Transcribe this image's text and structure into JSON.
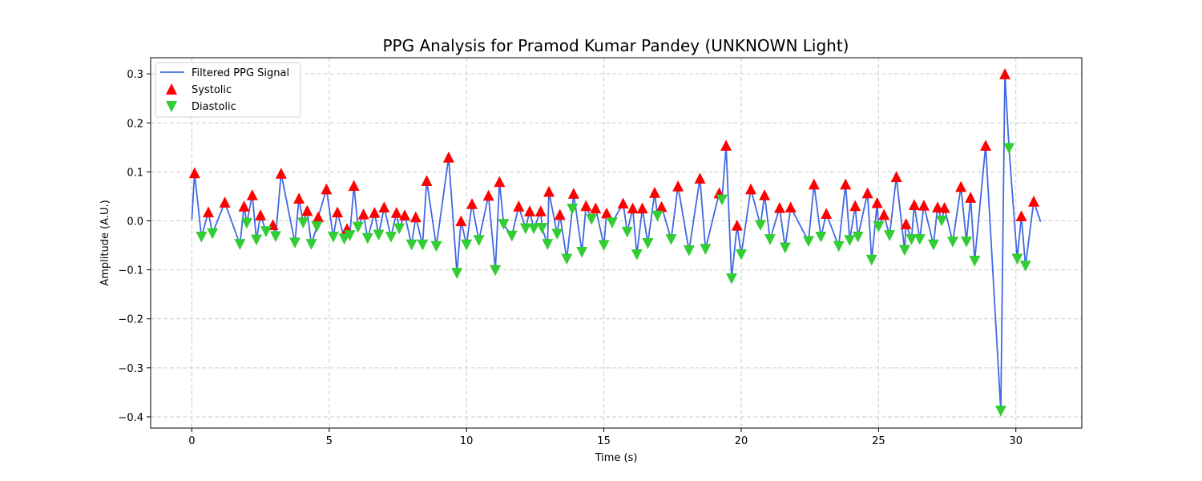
{
  "chart_data": {
    "type": "line",
    "title": "PPG Analysis for Pramod Kumar Pandey (UNKNOWN Light)",
    "xlabel": "Time (s)",
    "ylabel": "Amplitude (A.U.)",
    "xlim": [
      -1.5,
      32.4
    ],
    "ylim": [
      -0.423,
      0.333
    ],
    "xticks": [
      0,
      5,
      10,
      15,
      20,
      25,
      30
    ],
    "yticks": [
      0.3,
      0.2,
      0.1,
      0.0,
      -0.1,
      -0.2,
      -0.3,
      -0.4
    ],
    "xtick_labels": [
      "0",
      "5",
      "10",
      "15",
      "20",
      "25",
      "30"
    ],
    "ytick_labels": [
      "0.3",
      "0.2",
      "0.1",
      "0.0",
      "−0.1",
      "−0.2",
      "−0.3",
      "−0.4"
    ],
    "grid": true,
    "legend_position": "top-left",
    "colors": {
      "signal": "#4169e1",
      "systolic": "#ff0000",
      "diastolic": "#32cd32",
      "grid": "#cccccc"
    },
    "series": [
      {
        "name": "Filtered PPG Signal",
        "kind": "line"
      },
      {
        "name": "Systolic",
        "kind": "markers-up"
      },
      {
        "name": "Diastolic",
        "kind": "markers-down"
      }
    ],
    "systolic": {
      "x": [
        0.1,
        0.6,
        1.2,
        1.9,
        2.2,
        2.5,
        2.95,
        3.25,
        3.9,
        4.2,
        4.6,
        4.9,
        5.3,
        5.65,
        5.9,
        6.25,
        6.65,
        7.0,
        7.45,
        7.75,
        8.15,
        8.55,
        9.35,
        9.8,
        10.2,
        10.8,
        11.2,
        11.9,
        12.3,
        12.7,
        13.0,
        13.4,
        13.9,
        14.35,
        14.7,
        15.1,
        15.7,
        16.05,
        16.4,
        16.85,
        17.1,
        17.7,
        18.5,
        19.2,
        19.45,
        19.85,
        20.35,
        20.85,
        21.4,
        21.8,
        22.65,
        23.1,
        23.8,
        24.15,
        24.6,
        24.95,
        25.2,
        25.65,
        26.0,
        26.3,
        26.65,
        27.15,
        27.4,
        28.0,
        28.35,
        28.9,
        29.6,
        30.2,
        30.65
      ],
      "y": [
        0.098,
        0.018,
        0.038,
        0.03,
        0.053,
        0.012,
        -0.008,
        0.097,
        0.046,
        0.021,
        0.008,
        0.065,
        0.018,
        -0.016,
        0.072,
        0.014,
        0.017,
        0.028,
        0.017,
        0.012,
        0.008,
        0.082,
        0.13,
        0.0,
        0.035,
        0.052,
        0.08,
        0.03,
        0.02,
        0.02,
        0.06,
        0.013,
        0.056,
        0.031,
        0.026,
        0.016,
        0.036,
        0.026,
        0.026,
        0.058,
        0.029,
        0.071,
        0.087,
        0.057,
        0.154,
        -0.009,
        0.065,
        0.053,
        0.027,
        0.028,
        0.075,
        0.015,
        0.075,
        0.031,
        0.057,
        0.037,
        0.013,
        0.09,
        -0.006,
        0.033,
        0.032,
        0.028,
        0.027,
        0.07,
        0.048,
        0.154,
        0.3,
        0.01,
        0.04
      ]
    },
    "diastolic": {
      "x": [
        0.35,
        0.75,
        1.75,
        2.0,
        2.35,
        2.7,
        3.05,
        3.75,
        4.05,
        4.35,
        4.55,
        5.15,
        5.55,
        5.75,
        6.05,
        6.4,
        6.8,
        7.25,
        7.55,
        8.0,
        8.4,
        8.9,
        9.65,
        10.0,
        10.45,
        11.05,
        11.35,
        11.65,
        12.15,
        12.45,
        12.75,
        12.95,
        13.3,
        13.65,
        13.85,
        14.2,
        14.55,
        15.0,
        15.3,
        15.85,
        16.2,
        16.6,
        16.95,
        17.45,
        18.1,
        18.7,
        19.3,
        19.65,
        20.0,
        20.7,
        21.05,
        21.6,
        22.45,
        22.9,
        23.55,
        23.95,
        24.25,
        24.75,
        25.0,
        25.4,
        25.95,
        26.2,
        26.5,
        27.0,
        27.3,
        27.7,
        28.2,
        28.5,
        29.45,
        29.75,
        30.05,
        30.35
      ],
      "y": [
        -0.033,
        -0.026,
        -0.048,
        -0.005,
        -0.039,
        -0.022,
        -0.032,
        -0.045,
        -0.004,
        -0.048,
        -0.012,
        -0.033,
        -0.037,
        -0.03,
        -0.013,
        -0.036,
        -0.029,
        -0.033,
        -0.016,
        -0.049,
        -0.049,
        -0.052,
        -0.107,
        -0.049,
        -0.04,
        -0.101,
        -0.007,
        -0.031,
        -0.016,
        -0.016,
        -0.015,
        -0.048,
        -0.027,
        -0.078,
        0.024,
        -0.064,
        0.003,
        -0.05,
        -0.004,
        -0.023,
        -0.069,
        -0.046,
        0.01,
        -0.038,
        -0.061,
        -0.058,
        0.043,
        -0.118,
        -0.069,
        -0.009,
        -0.038,
        -0.055,
        -0.042,
        -0.033,
        -0.052,
        -0.04,
        -0.033,
        -0.08,
        -0.012,
        -0.03,
        -0.06,
        -0.038,
        -0.038,
        -0.049,
        0.0,
        -0.043,
        -0.043,
        -0.082,
        -0.388,
        0.148,
        -0.078,
        -0.092
      ]
    }
  }
}
